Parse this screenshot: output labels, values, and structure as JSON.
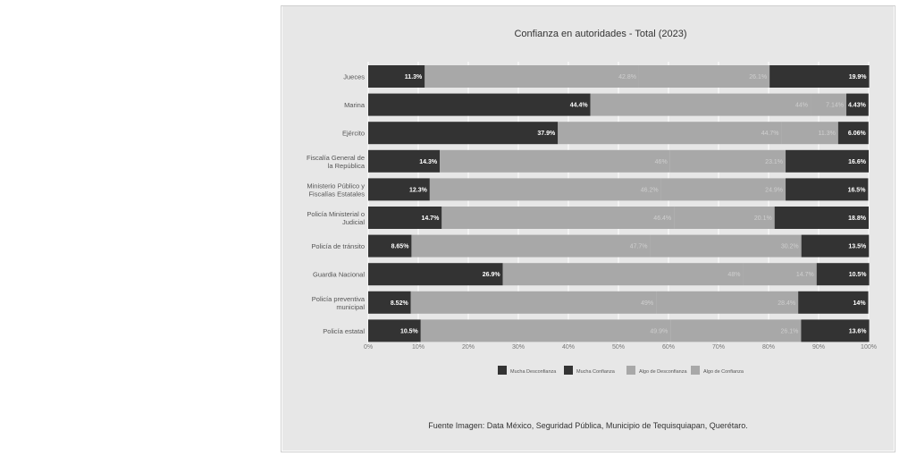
{
  "chart_data": {
    "type": "bar",
    "orientation": "horizontal",
    "stacked": true,
    "title": "Confianza en autoridades - Total (2023)",
    "categories": [
      "Jueces",
      "Marina",
      "Ejército",
      "Fiscalía General de la República",
      "Ministerio Público y Fiscalías Estatales",
      "Policía Ministerial o Judicial",
      "Policía de tránsito",
      "Guardia Nacional",
      "Policía preventiva municipal",
      "Policía estatal"
    ],
    "category_lines": [
      [
        "Jueces"
      ],
      [
        "Marina"
      ],
      [
        "Ejército"
      ],
      [
        "Fiscalía General de",
        "la República"
      ],
      [
        "Ministerio Público y",
        "Fiscalías Estatales"
      ],
      [
        "Policía Ministerial o",
        "Judicial"
      ],
      [
        "Policía de tránsito"
      ],
      [
        "Guardia Nacional"
      ],
      [
        "Policía preventiva",
        "municipal"
      ],
      [
        "Policía estatal"
      ]
    ],
    "segments": [
      [
        {
          "label": "11.3%",
          "value": 11.3,
          "color": "#333333"
        },
        {
          "label": "42.8%",
          "value": 42.8,
          "color": "#a8a8a8"
        },
        {
          "label": "26.1%",
          "value": 26.1,
          "color": "#a8a8a8"
        },
        {
          "label": "19.9%",
          "value": 19.9,
          "color": "#333333"
        }
      ],
      [
        {
          "label": "44.4%",
          "value": 44.4,
          "color": "#333333"
        },
        {
          "label": "44%",
          "value": 44.0,
          "color": "#a8a8a8"
        },
        {
          "label": "7.14%",
          "value": 7.14,
          "color": "#a8a8a8"
        },
        {
          "label": "4.43%",
          "value": 4.43,
          "color": "#333333"
        }
      ],
      [
        {
          "label": "37.9%",
          "value": 37.9,
          "color": "#333333"
        },
        {
          "label": "44.7%",
          "value": 44.7,
          "color": "#a8a8a8"
        },
        {
          "label": "11.3%",
          "value": 11.3,
          "color": "#a8a8a8"
        },
        {
          "label": "6.06%",
          "value": 6.06,
          "color": "#333333"
        }
      ],
      [
        {
          "label": "14.3%",
          "value": 14.3,
          "color": "#333333"
        },
        {
          "label": "46%",
          "value": 46.0,
          "color": "#a8a8a8"
        },
        {
          "label": "23.1%",
          "value": 23.1,
          "color": "#a8a8a8"
        },
        {
          "label": "16.6%",
          "value": 16.6,
          "color": "#333333"
        }
      ],
      [
        {
          "label": "12.3%",
          "value": 12.3,
          "color": "#333333"
        },
        {
          "label": "46.2%",
          "value": 46.2,
          "color": "#a8a8a8"
        },
        {
          "label": "24.9%",
          "value": 24.9,
          "color": "#a8a8a8"
        },
        {
          "label": "16.5%",
          "value": 16.5,
          "color": "#333333"
        }
      ],
      [
        {
          "label": "14.7%",
          "value": 14.7,
          "color": "#333333"
        },
        {
          "label": "46.4%",
          "value": 46.4,
          "color": "#a8a8a8"
        },
        {
          "label": "20.1%",
          "value": 20.1,
          "color": "#a8a8a8"
        },
        {
          "label": "18.8%",
          "value": 18.8,
          "color": "#333333"
        }
      ],
      [
        {
          "label": "8.65%",
          "value": 8.65,
          "color": "#333333"
        },
        {
          "label": "47.7%",
          "value": 47.7,
          "color": "#a8a8a8"
        },
        {
          "label": "30.2%",
          "value": 30.2,
          "color": "#a8a8a8"
        },
        {
          "label": "13.5%",
          "value": 13.5,
          "color": "#333333"
        }
      ],
      [
        {
          "label": "26.9%",
          "value": 26.9,
          "color": "#333333"
        },
        {
          "label": "48%",
          "value": 48.0,
          "color": "#a8a8a8"
        },
        {
          "label": "14.7%",
          "value": 14.7,
          "color": "#a8a8a8"
        },
        {
          "label": "10.5%",
          "value": 10.5,
          "color": "#333333"
        }
      ],
      [
        {
          "label": "8.52%",
          "value": 8.52,
          "color": "#333333"
        },
        {
          "label": "49%",
          "value": 49.0,
          "color": "#a8a8a8"
        },
        {
          "label": "28.4%",
          "value": 28.4,
          "color": "#a8a8a8"
        },
        {
          "label": "14%",
          "value": 14.0,
          "color": "#333333"
        }
      ],
      [
        {
          "label": "10.5%",
          "value": 10.5,
          "color": "#333333"
        },
        {
          "label": "49.9%",
          "value": 49.9,
          "color": "#a8a8a8"
        },
        {
          "label": "26.1%",
          "value": 26.1,
          "color": "#a8a8a8"
        },
        {
          "label": "13.6%",
          "value": 13.6,
          "color": "#333333"
        }
      ]
    ],
    "xlim": [
      0,
      100
    ],
    "x_ticks": [
      "0%",
      "10%",
      "20%",
      "30%",
      "40%",
      "50%",
      "60%",
      "70%",
      "80%",
      "90%",
      "100%"
    ],
    "legend": [
      {
        "name": "Mucha Desconfianza",
        "color": "#333333"
      },
      {
        "name": "Mucha Confianza",
        "color": "#333333"
      },
      {
        "name": "Algo de Desconfianza",
        "color": "#a8a8a8"
      },
      {
        "name": "Algo de Confianza",
        "color": "#a8a8a8"
      }
    ],
    "legend_position": "bottom",
    "grid": true,
    "colors": {
      "dark": "#333333",
      "light": "#a8a8a8",
      "background": "#e7e7e7",
      "grid": "#ffffff"
    }
  },
  "caption": "Fuente Imagen: Data México, Seguridad Pública, Municipio de Tequisquiapan, Querétaro."
}
